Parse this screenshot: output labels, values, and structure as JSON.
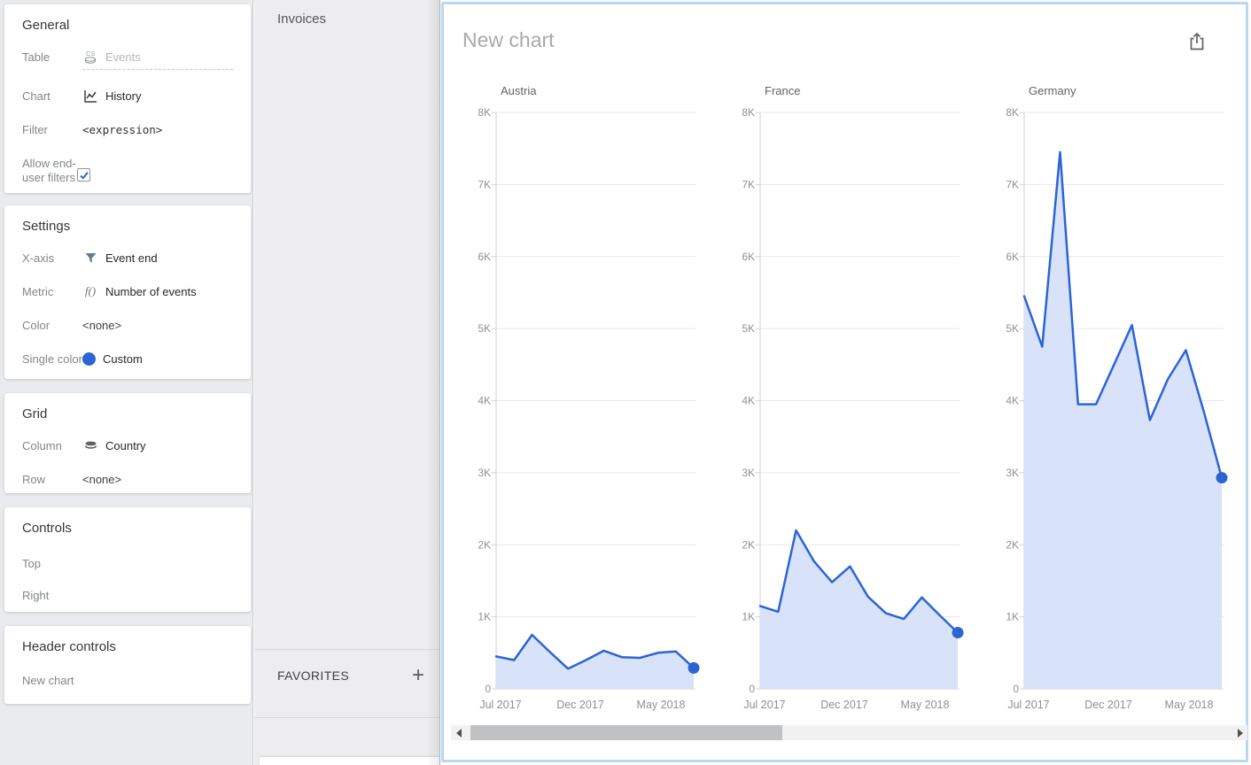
{
  "app": {
    "accent_color": "#2d64d4",
    "card_border_color": "#b9d7f3"
  },
  "sidebar": {
    "general": {
      "title": "General",
      "table_label": "Table",
      "table_icon": "CS",
      "table_value": "Events",
      "chart_label": "Chart",
      "chart_value": "History",
      "filter_label": "Filter",
      "filter_value": "<expression>",
      "allow_label": "Allow end-user filters",
      "allow_checked": "true"
    },
    "settings": {
      "title": "Settings",
      "xaxis_label": "X-axis",
      "xaxis_value": "Event end",
      "metric_label": "Metric",
      "metric_icon": "f()",
      "metric_value": "Number of events",
      "color_label": "Color",
      "color_value": "<none>",
      "single_color_label": "Single color",
      "single_color_value": "Custom"
    },
    "grid": {
      "title": "Grid",
      "column_label": "Column",
      "column_value": "Country",
      "row_label": "Row",
      "row_value": "<none>"
    },
    "controls": {
      "title": "Controls",
      "top_label": "Top",
      "right_label": "Right"
    },
    "header_controls": {
      "title": "Header controls",
      "item": "New chart"
    }
  },
  "explorer": {
    "root_item": "Invoices",
    "favorites_label": "FAVORITES",
    "add_button": "+"
  },
  "main": {
    "title": "New chart",
    "export_icon": "share-export"
  },
  "chart_data": {
    "type": "area",
    "title": "New chart",
    "facet_by": "Country",
    "x": [
      "Jul 2017",
      "Aug 2017",
      "Sep 2017",
      "Oct 2017",
      "Nov 2017",
      "Dec 2017",
      "Jan 2018",
      "Feb 2018",
      "Mar 2018",
      "Apr 2018",
      "May 2018",
      "Jun 2018"
    ],
    "x_tick_labels": [
      "Jul 2017",
      "Dec 2017",
      "May 2018"
    ],
    "y_ticks": [
      "0",
      "1K",
      "2K",
      "3K",
      "4K",
      "5K",
      "6K",
      "7K",
      "8K"
    ],
    "ylim": [
      0,
      8000
    ],
    "ylabel": "Number of events",
    "grid": true,
    "legend": false,
    "series": [
      {
        "name": "Austria",
        "values": [
          450,
          400,
          750,
          510,
          280,
          400,
          530,
          440,
          430,
          500,
          520,
          290
        ]
      },
      {
        "name": "France",
        "values": [
          1150,
          1070,
          2200,
          1770,
          1480,
          1700,
          1280,
          1050,
          970,
          1270,
          1020,
          780
        ]
      },
      {
        "name": "Germany",
        "values": [
          5450,
          4750,
          7450,
          3950,
          3950,
          4500,
          5050,
          3730,
          4300,
          4700,
          3850,
          2930
        ]
      }
    ],
    "line_color": "#2d64d4",
    "fill_color": "#d8e2f8",
    "endpoint_marker": "dot"
  }
}
